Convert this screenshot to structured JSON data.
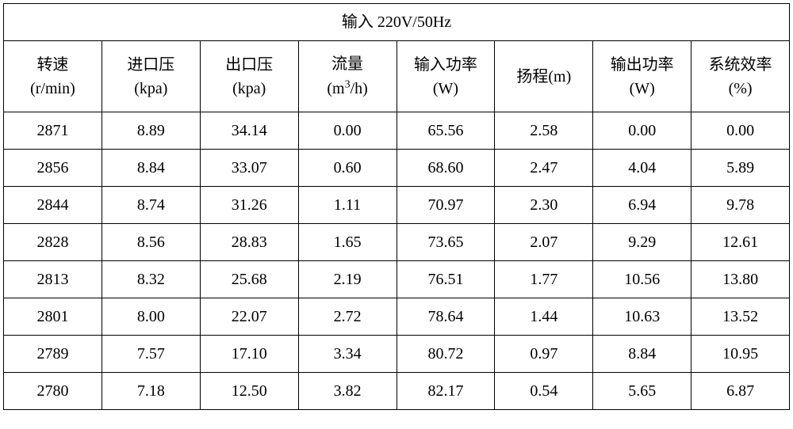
{
  "table": {
    "title": "输入  220V/50Hz",
    "columns": [
      {
        "label_line1": "转速",
        "label_line2": "(r/min)"
      },
      {
        "label_line1": "进口压",
        "label_line2": "(kpa)"
      },
      {
        "label_line1": "出口压",
        "label_line2": "(kpa)"
      },
      {
        "label_line1": "流量",
        "label_line2_html": "(m<sup>3</sup>/h)"
      },
      {
        "label_line1": "输入功率",
        "label_line2": "(W)"
      },
      {
        "label_line1": "扬程(m)",
        "label_line2": ""
      },
      {
        "label_line1": "输出功率",
        "label_line2": "(W)"
      },
      {
        "label_line1": "系统效率",
        "label_line2": "(%)"
      }
    ],
    "rows": [
      [
        "2871",
        "8.89",
        "34.14",
        "0.00",
        "65.56",
        "2.58",
        "0.00",
        "0.00"
      ],
      [
        "2856",
        "8.84",
        "33.07",
        "0.60",
        "68.60",
        "2.47",
        "4.04",
        "5.89"
      ],
      [
        "2844",
        "8.74",
        "31.26",
        "1.11",
        "70.97",
        "2.30",
        "6.94",
        "9.78"
      ],
      [
        "2828",
        "8.56",
        "28.83",
        "1.65",
        "73.65",
        "2.07",
        "9.29",
        "12.61"
      ],
      [
        "2813",
        "8.32",
        "25.68",
        "2.19",
        "76.51",
        "1.77",
        "10.56",
        "13.80"
      ],
      [
        "2801",
        "8.00",
        "22.07",
        "2.72",
        "78.64",
        "1.44",
        "10.63",
        "13.52"
      ],
      [
        "2789",
        "7.57",
        "17.10",
        "3.34",
        "80.72",
        "0.97",
        "8.84",
        "10.95"
      ],
      [
        "2780",
        "7.18",
        "12.50",
        "3.82",
        "82.17",
        "0.54",
        "5.65",
        "6.87"
      ]
    ],
    "styling": {
      "border_color": "#000000",
      "background_color": "#ffffff",
      "text_color": "#000000",
      "font_size": 20,
      "font_family": "SimSun, serif",
      "cell_alignment": "center",
      "num_columns": 8,
      "column_widths_equal": true
    }
  }
}
